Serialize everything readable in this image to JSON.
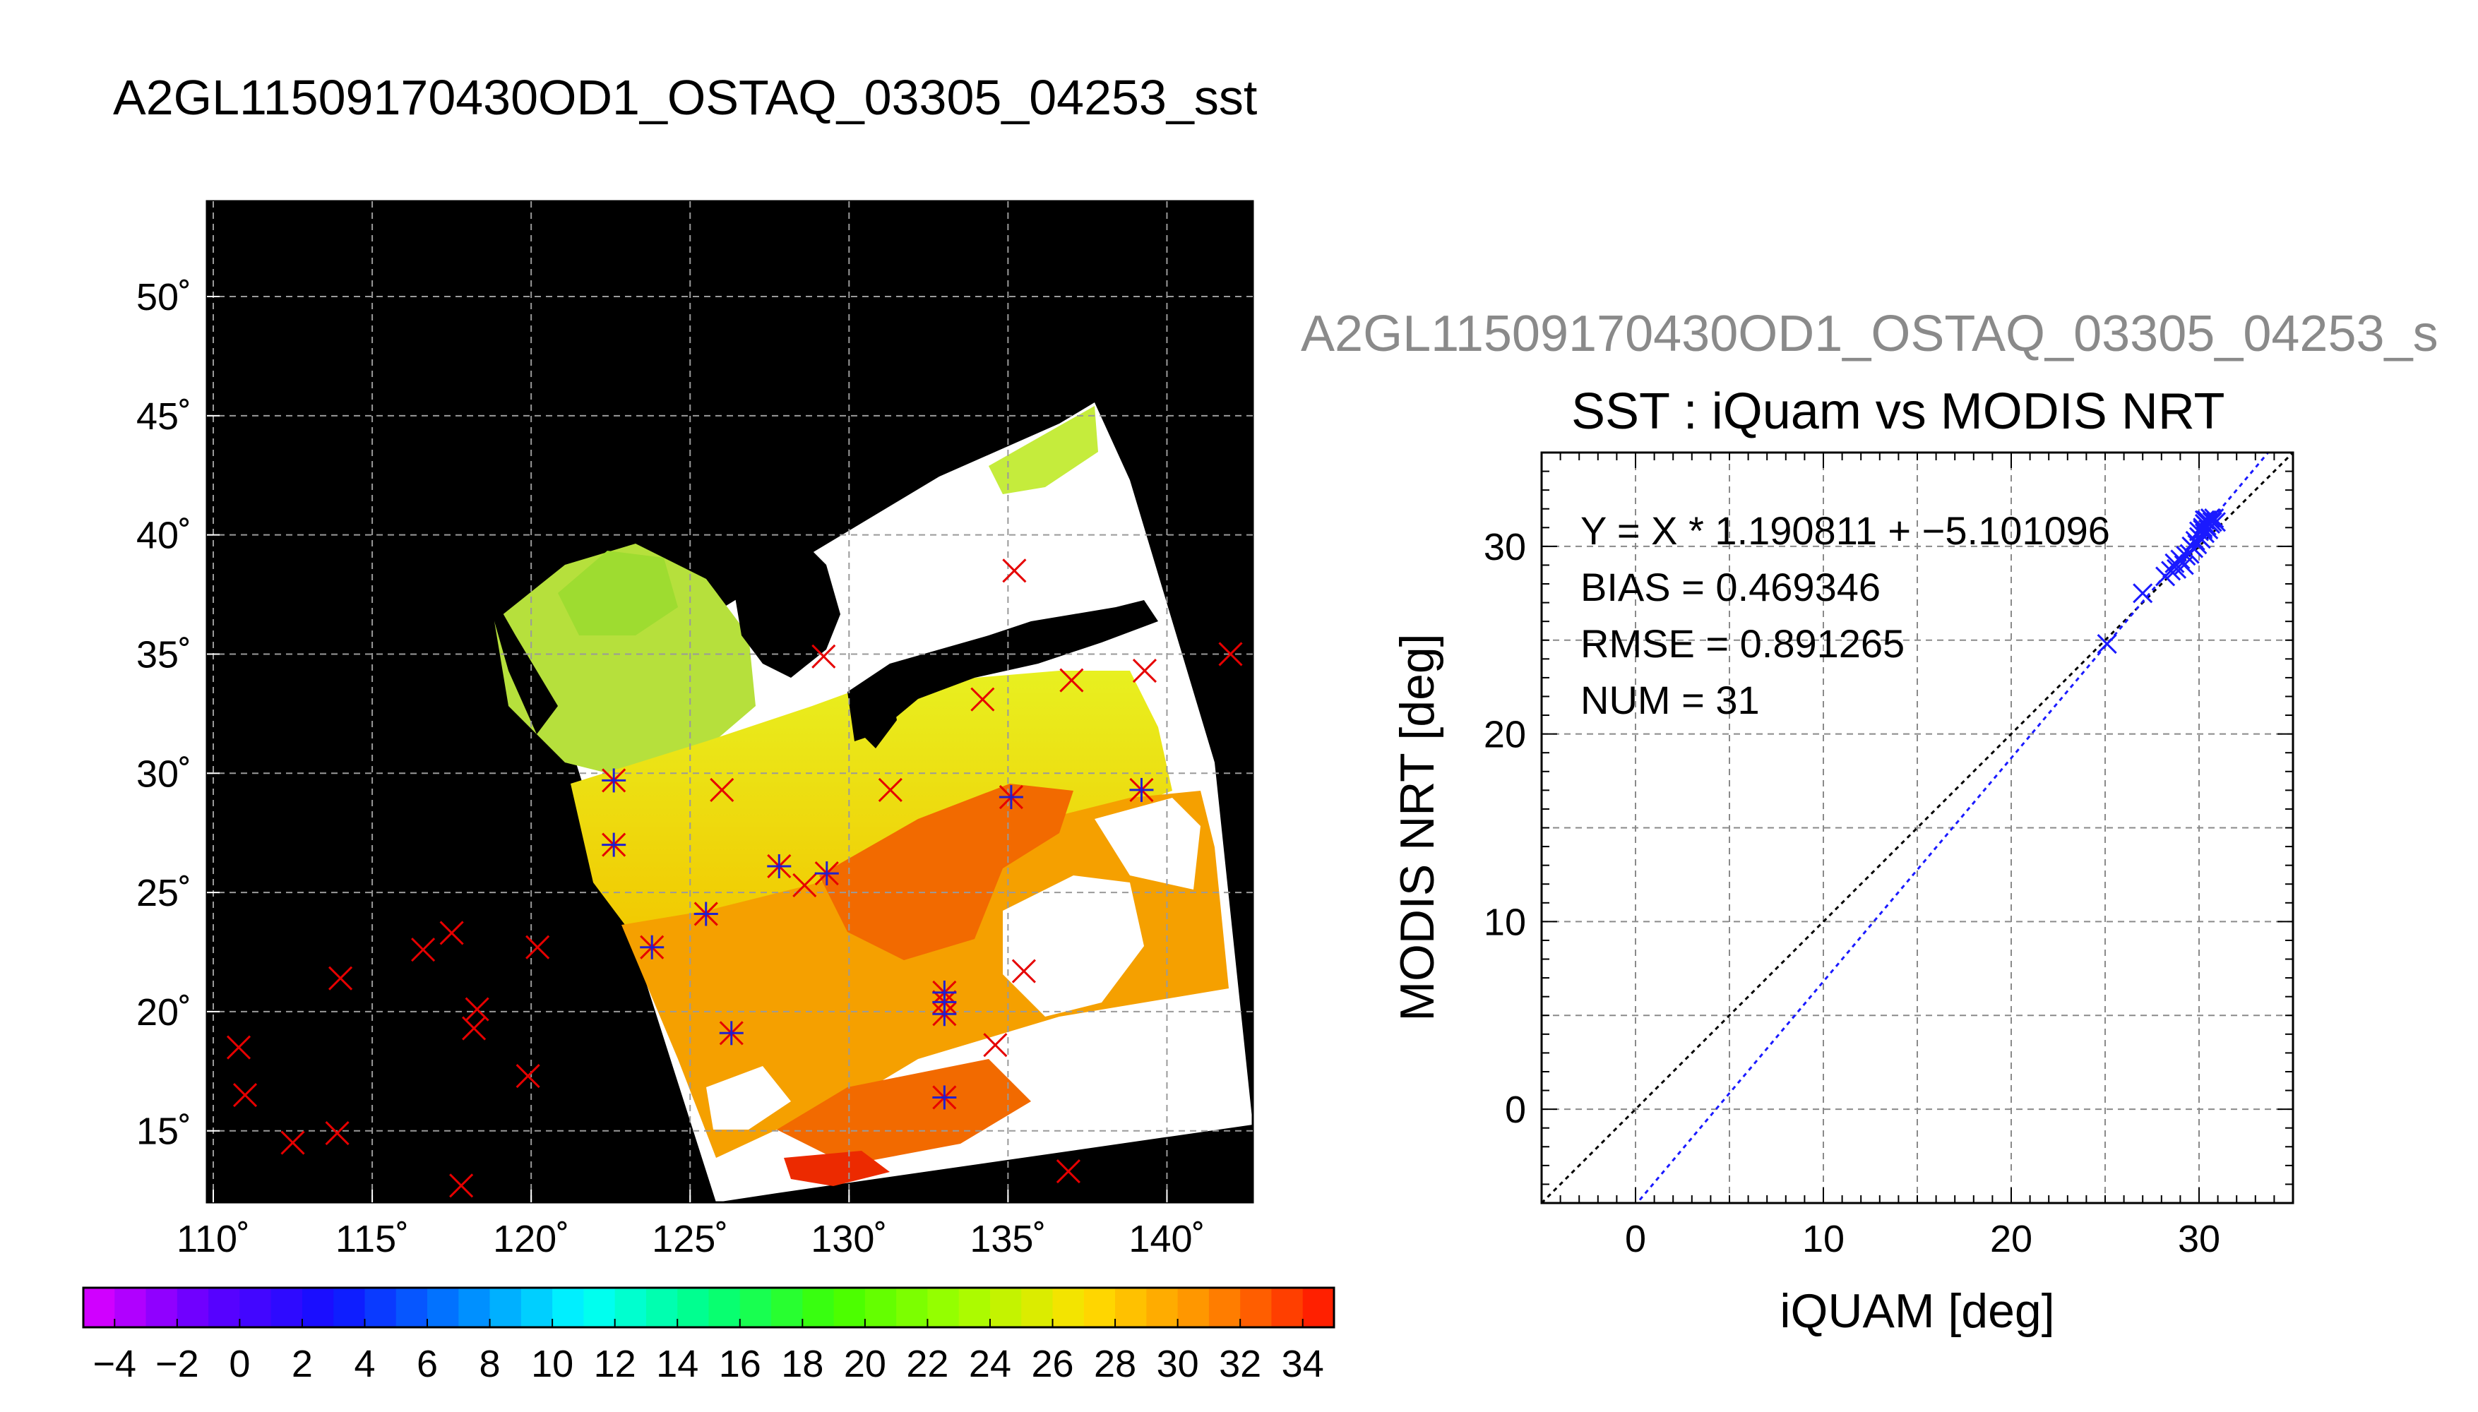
{
  "title": "A2GL11509170430OD1_OSTAQ_03305_04253_sst",
  "subtitle": "A2GL11509170430OD1_OSTAQ_03305_04253_s",
  "colors": {
    "map_background": "#000000",
    "cloud": "#ffffff",
    "buoy_marker": "#e60000",
    "matched_marker": "#2020d0",
    "fit_line": "#1a1aff",
    "identity_line": "#000000"
  },
  "chart_data": [
    {
      "type": "heatmap",
      "name": "sst-map",
      "xticks": [
        "110˚",
        "115˚",
        "120˚",
        "125˚",
        "130˚",
        "135˚",
        "140˚"
      ],
      "yticks": [
        "50˚",
        "45˚",
        "40˚",
        "35˚",
        "30˚",
        "25˚",
        "20˚",
        "15˚"
      ],
      "xlim": [
        109.8,
        142.7
      ],
      "ylim": [
        12,
        54
      ],
      "grid": true,
      "buoy_points": [
        [
          110.8,
          18.5
        ],
        [
          111.0,
          16.5
        ],
        [
          112.5,
          14.5
        ],
        [
          114.0,
          21.4
        ],
        [
          113.9,
          14.9
        ],
        [
          116.6,
          22.6
        ],
        [
          117.5,
          23.3
        ],
        [
          117.8,
          12.7
        ],
        [
          118.3,
          20.1
        ],
        [
          118.2,
          19.3
        ],
        [
          120.2,
          22.7
        ],
        [
          119.9,
          17.3
        ],
        [
          122.6,
          29.7
        ],
        [
          122.6,
          27.0
        ],
        [
          123.8,
          22.7
        ],
        [
          125.5,
          24.1
        ],
        [
          126.0,
          29.3
        ],
        [
          126.3,
          19.1
        ],
        [
          127.8,
          26.1
        ],
        [
          128.6,
          25.3
        ],
        [
          129.2,
          34.9
        ],
        [
          129.3,
          25.8
        ],
        [
          131.3,
          29.3
        ],
        [
          133.0,
          20.8
        ],
        [
          133.0,
          20.4
        ],
        [
          133.0,
          19.9
        ],
        [
          133.0,
          16.4
        ],
        [
          134.6,
          18.6
        ],
        [
          135.1,
          29.0
        ],
        [
          135.5,
          21.7
        ],
        [
          134.2,
          33.1
        ],
        [
          135.2,
          38.5
        ],
        [
          136.9,
          13.3
        ],
        [
          137.0,
          33.9
        ],
        [
          139.3,
          34.3
        ],
        [
          139.2,
          29.3
        ],
        [
          142.0,
          35.0
        ]
      ],
      "matched_points": [
        [
          122.6,
          29.7
        ],
        [
          122.6,
          27.0
        ],
        [
          123.8,
          22.7
        ],
        [
          125.5,
          24.1
        ],
        [
          126.3,
          19.1
        ],
        [
          127.8,
          26.1
        ],
        [
          129.3,
          25.8
        ],
        [
          133.0,
          20.8
        ],
        [
          133.0,
          20.4
        ],
        [
          133.0,
          19.9
        ],
        [
          133.0,
          16.4
        ],
        [
          135.1,
          29.0
        ],
        [
          139.2,
          29.3
        ]
      ]
    },
    {
      "type": "colorbar",
      "name": "sst-colorbar",
      "range": [
        -5,
        35
      ],
      "step": 1,
      "tick_labels": [
        "−4",
        "−2",
        "0",
        "2",
        "4",
        "6",
        "8",
        "10",
        "12",
        "14",
        "16",
        "18",
        "20",
        "22",
        "24",
        "26",
        "28",
        "30",
        "32",
        "34"
      ],
      "tick_values": [
        -4,
        -2,
        0,
        2,
        4,
        6,
        8,
        10,
        12,
        14,
        16,
        18,
        20,
        22,
        24,
        26,
        28,
        30,
        32,
        34
      ]
    },
    {
      "type": "scatter",
      "name": "iquam-vs-modis",
      "title": "SST : iQuam vs MODIS NRT",
      "xlabel": "iQUAM [deg]",
      "ylabel": "MODIS NRT [deg]",
      "xlim": [
        -5,
        35
      ],
      "ylim": [
        -5,
        35
      ],
      "xticks": [
        0,
        10,
        20,
        30
      ],
      "yticks": [
        0,
        10,
        20,
        30
      ],
      "grid": true,
      "fit": {
        "slope": 1.190811,
        "intercept": -5.101096
      },
      "stats": [
        "Y = X * 1.190811 + −5.101096",
        "BIAS = 0.469346",
        "RMSE = 0.891265",
        "NUM = 31"
      ],
      "points": [
        [
          25.1,
          24.8
        ],
        [
          27.0,
          27.5
        ],
        [
          28.2,
          28.4
        ],
        [
          28.5,
          28.7
        ],
        [
          28.7,
          29.1
        ],
        [
          28.8,
          28.8
        ],
        [
          29.0,
          29.3
        ],
        [
          29.2,
          29.0
        ],
        [
          29.3,
          29.5
        ],
        [
          29.5,
          29.6
        ],
        [
          29.6,
          30.0
        ],
        [
          29.7,
          29.9
        ],
        [
          29.8,
          30.3
        ],
        [
          29.9,
          30.1
        ],
        [
          30.0,
          30.5
        ],
        [
          30.0,
          30.8
        ],
        [
          30.1,
          30.4
        ],
        [
          30.2,
          30.9
        ],
        [
          30.2,
          31.0
        ],
        [
          30.3,
          30.7
        ],
        [
          30.3,
          31.2
        ],
        [
          30.4,
          31.1
        ],
        [
          30.4,
          31.4
        ],
        [
          30.5,
          30.9
        ],
        [
          30.5,
          31.3
        ],
        [
          30.6,
          31.2
        ],
        [
          30.6,
          31.5
        ],
        [
          30.7,
          31.3
        ],
        [
          30.3,
          31.4
        ],
        [
          30.8,
          31.5
        ],
        [
          30.9,
          31.3
        ]
      ]
    }
  ]
}
